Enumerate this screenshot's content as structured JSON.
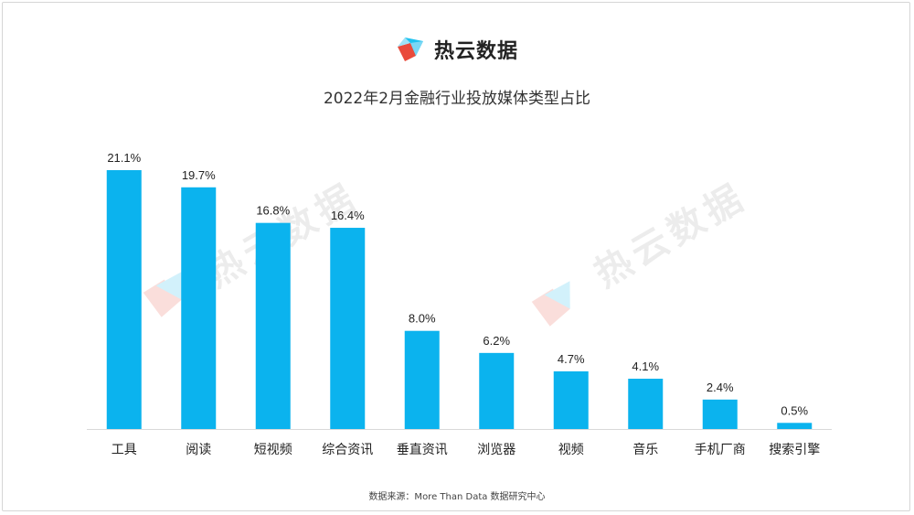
{
  "brand": {
    "name": "热云数据",
    "logo_icon": "reyun-logo-icon"
  },
  "watermark": {
    "text": "热云数据"
  },
  "chart_data": {
    "type": "bar",
    "title": "2022年2月金融行业投放媒体类型占比",
    "categories": [
      "工具",
      "阅读",
      "短视频",
      "综合资讯",
      "垂直资讯",
      "浏览器",
      "视频",
      "音乐",
      "手机厂商",
      "搜索引擎"
    ],
    "values": [
      21.1,
      19.7,
      16.8,
      16.4,
      8.0,
      6.2,
      4.7,
      4.1,
      2.4,
      0.5
    ],
    "value_labels": [
      "21.1%",
      "19.7%",
      "16.8%",
      "16.4%",
      "8.0%",
      "6.2%",
      "4.7%",
      "4.1%",
      "2.4%",
      "0.5%"
    ],
    "xlabel": "",
    "ylabel": "",
    "ylim": [
      0,
      21.1
    ],
    "grid": false,
    "colors": {
      "bar": "#0BB3EE",
      "axis": "#d9d9d9"
    }
  },
  "source": "数据来源：More Than Data 数据研究中心"
}
